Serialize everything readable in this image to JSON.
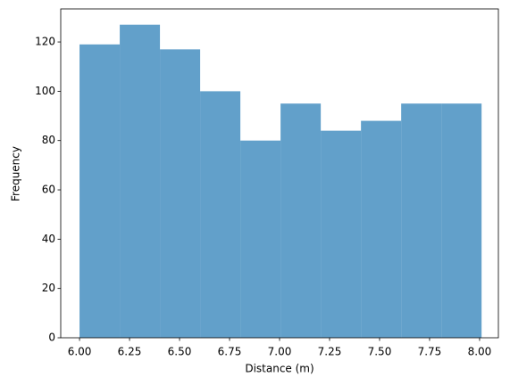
{
  "chart_data": {
    "type": "histogram",
    "x_label": "Distance (m)",
    "y_label": "Frequency",
    "bins": [
      6.0,
      6.201,
      6.402,
      6.603,
      6.804,
      7.005,
      7.206,
      7.407,
      7.608,
      7.809,
      8.01
    ],
    "values": [
      119,
      127,
      117,
      100,
      80,
      95,
      84,
      88,
      95,
      95
    ],
    "color": "#1f77b4",
    "alpha": 0.7,
    "xlim": [
      5.906,
      8.094
    ],
    "xticks": [
      {
        "value": 6.0,
        "label": "6.00"
      },
      {
        "value": 6.25,
        "label": "6.25"
      },
      {
        "value": 6.5,
        "label": "6.50"
      },
      {
        "value": 6.75,
        "label": "6.75"
      },
      {
        "value": 7.0,
        "label": "7.00"
      },
      {
        "value": 7.25,
        "label": "7.25"
      },
      {
        "value": 7.5,
        "label": "7.50"
      },
      {
        "value": 7.75,
        "label": "7.75"
      },
      {
        "value": 8.0,
        "label": "8.00"
      }
    ],
    "ylim": [
      0,
      133.4
    ],
    "yticks": [
      0,
      20,
      40,
      60,
      80,
      100,
      120
    ],
    "grid": false
  }
}
